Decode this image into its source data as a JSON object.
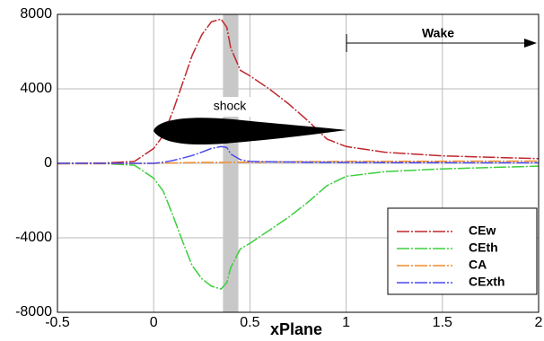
{
  "chart_data": {
    "type": "line",
    "xlabel": "xPlane",
    "annotations": [
      "Wake",
      "shock"
    ],
    "shaded_xrange": [
      0.36,
      0.44
    ],
    "x": [
      -0.5,
      -0.25,
      -0.1,
      0,
      0.05,
      0.1,
      0.15,
      0.2,
      0.25,
      0.3,
      0.35,
      0.38,
      0.4,
      0.45,
      0.5,
      0.6,
      0.7,
      0.8,
      0.9,
      1,
      1.2,
      1.5,
      2
    ],
    "series": [
      {
        "name": "CEw",
        "color": "#c0272d",
        "values": [
          0,
          20,
          100,
          800,
          1500,
          2800,
          4300,
          5800,
          6900,
          7600,
          7750,
          7300,
          6200,
          5000,
          4700,
          4000,
          3200,
          2300,
          1300,
          900,
          600,
          400,
          250
        ]
      },
      {
        "name": "CEth",
        "color": "#3ccf3c",
        "values": [
          0,
          -20,
          -100,
          -800,
          -1500,
          -2800,
          -4200,
          -5500,
          -6200,
          -6600,
          -6750,
          -6400,
          -5600,
          -4600,
          -4300,
          -3600,
          -2900,
          -2100,
          -1200,
          -700,
          -450,
          -300,
          -150
        ]
      },
      {
        "name": "CA",
        "color": "#f28c28",
        "values": [
          -30,
          -20,
          -10,
          0,
          10,
          20,
          30,
          40,
          50,
          50,
          50,
          50,
          50,
          60,
          60,
          70,
          80,
          90,
          90,
          100,
          100,
          110,
          120
        ]
      },
      {
        "name": "CExth",
        "color": "#4a4af0",
        "values": [
          0,
          0,
          0,
          0,
          60,
          150,
          280,
          420,
          600,
          800,
          900,
          850,
          500,
          200,
          100,
          80,
          70,
          60,
          50,
          50,
          40,
          35,
          30
        ]
      }
    ],
    "xlim": [
      -0.5,
      2
    ],
    "ylim": [
      -8000,
      8000
    ],
    "xticks": [
      -0.5,
      0,
      0.5,
      1,
      1.5,
      2
    ],
    "yticks": [
      -8000,
      -4000,
      0,
      4000,
      8000
    ],
    "grid": true,
    "legend": "lower right"
  }
}
